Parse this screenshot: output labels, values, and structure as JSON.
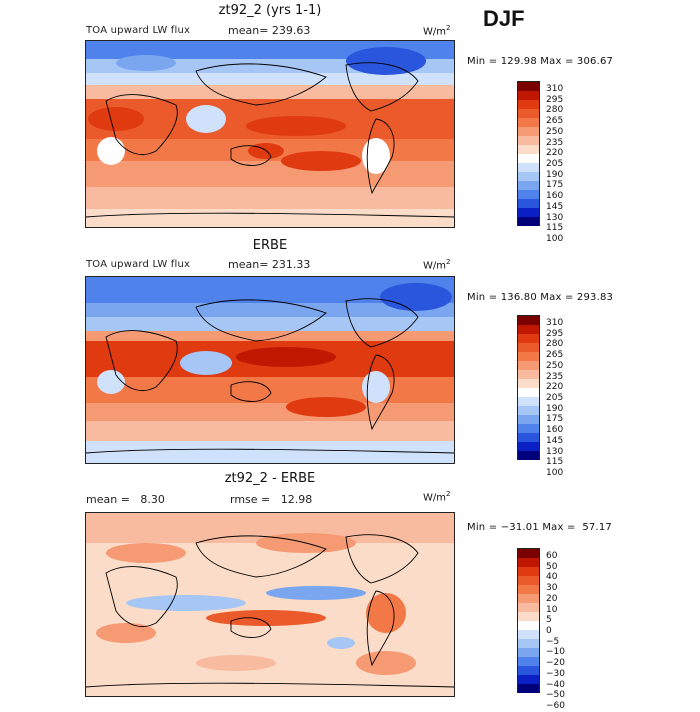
{
  "season": "DJF",
  "panels": [
    {
      "title": "zt92_2 (yrs 1-1)",
      "variable": "TOA upward LW flux",
      "mean_label": "mean=",
      "mean": "239.63",
      "units": "W/m",
      "units_exp": "2",
      "min_label": "Min =",
      "min": "129.98",
      "max_label": "Max =",
      "max": "306.67",
      "colorbar_labels": [
        "310",
        "295",
        "280",
        "265",
        "250",
        "235",
        "220",
        "205",
        "190",
        "175",
        "160",
        "145",
        "130",
        "115",
        "100"
      ]
    },
    {
      "title": "ERBE",
      "variable": "TOA upward LW flux",
      "mean_label": "mean=",
      "mean": "231.33",
      "units": "W/m",
      "units_exp": "2",
      "min_label": "Min =",
      "min": "136.80",
      "max_label": "Max =",
      "max": "293.83",
      "colorbar_labels": [
        "310",
        "295",
        "280",
        "265",
        "250",
        "235",
        "220",
        "205",
        "190",
        "175",
        "160",
        "145",
        "130",
        "115",
        "100"
      ]
    },
    {
      "title": "zt92_2 - ERBE",
      "mean_label": "mean =",
      "mean": "8.30",
      "rmse_label": "rmse =",
      "rmse": "12.98",
      "units": "W/m",
      "units_exp": "2",
      "min_label": "Min =",
      "min": "−31.01",
      "max_label": "Max =",
      "max": "57.17",
      "colorbar_labels": [
        "60",
        "50",
        "40",
        "30",
        "20",
        "10",
        "5",
        "0",
        "−5",
        "−10",
        "−20",
        "−30",
        "−40",
        "−50",
        "−60"
      ]
    }
  ],
  "colors": {
    "abs_scale": [
      "#7a0000",
      "#c01800",
      "#e03a10",
      "#ea5a2a",
      "#f27848",
      "#f69a74",
      "#f9bba0",
      "#fbdcc8",
      "#ffffff",
      "#d0e2fb",
      "#a6c6f6",
      "#7aa6f0",
      "#4f82ea",
      "#2a56de",
      "#0b20c4",
      "#00007a"
    ],
    "diff_scale": [
      "#7a0000",
      "#c01800",
      "#e03a10",
      "#ea5a2a",
      "#f27848",
      "#f69a74",
      "#f9bba0",
      "#fbdcc8",
      "#ffffff",
      "#d0e2fb",
      "#a6c6f6",
      "#7aa6f0",
      "#4f82ea",
      "#2a56de",
      "#0b20c4",
      "#00007a"
    ]
  }
}
